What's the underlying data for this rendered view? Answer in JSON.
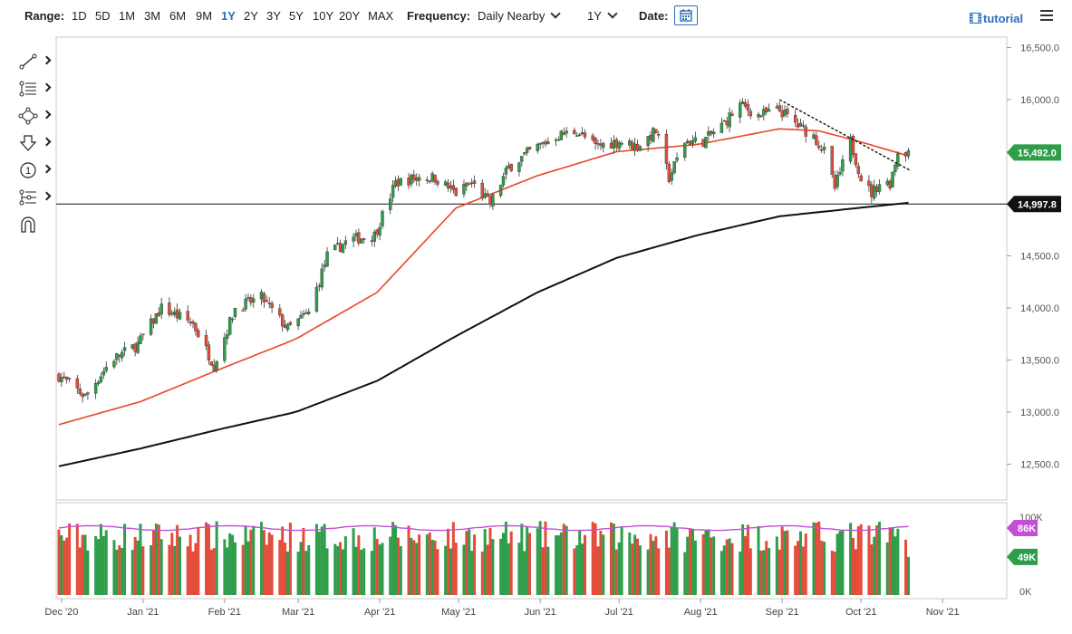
{
  "toolbar": {
    "range_label": "Range:",
    "ranges": [
      "1D",
      "5D",
      "1M",
      "3M",
      "6M",
      "9M",
      "1Y",
      "2Y",
      "3Y",
      "5Y",
      "10Y",
      "20Y",
      "MAX"
    ],
    "active_range": "1Y",
    "frequency_label": "Frequency:",
    "frequency_value": "Daily Nearby",
    "period_value": "1Y",
    "date_label": "Date:",
    "tutorial_label": "tutorial"
  },
  "drawing_tools": [
    "line-tool-icon",
    "fibonacci-tool-icon",
    "shape-tool-icon",
    "arrow-tool-icon",
    "annotation-tool-icon",
    "measure-tool-icon",
    "magnet-tool-icon"
  ],
  "colors": {
    "up": "#2e9e4a",
    "down": "#e34c3a",
    "ma50": "#e8462a",
    "ma200": "#111111",
    "volume_avg": "#c34fd6",
    "accent": "#2a6ebb"
  },
  "chart_data": {
    "type": "candlestick",
    "x_ticks": [
      "Dec '20",
      "Jan '21",
      "Feb '21",
      "Mar '21",
      "Apr '21",
      "May '21",
      "Jun '21",
      "Jul '21",
      "Aug '21",
      "Sep '21",
      "Oct '21",
      "Nov '21"
    ],
    "y_ticks": [
      "16,500.0",
      "16,000.0",
      "15,500.0",
      "15,000.0",
      "14,500.0",
      "14,000.0",
      "13,500.0",
      "13,000.0",
      "12,500.0"
    ],
    "ylim": [
      12400,
      16600
    ],
    "price_anchors": [
      [
        "2020-11-30",
        13350
      ],
      [
        "2020-12-10",
        13150
      ],
      [
        "2020-12-20",
        13500
      ],
      [
        "2020-12-30",
        13650
      ],
      [
        "2021-01-08",
        14000
      ],
      [
        "2021-01-20",
        13850
      ],
      [
        "2021-01-28",
        13450
      ],
      [
        "2021-02-05",
        14000
      ],
      [
        "2021-02-15",
        14100
      ],
      [
        "2021-02-25",
        13800
      ],
      [
        "2021-03-05",
        13950
      ],
      [
        "2021-03-12",
        14500
      ],
      [
        "2021-03-20",
        14650
      ],
      [
        "2021-03-30",
        14700
      ],
      [
        "2021-04-07",
        15200
      ],
      [
        "2021-04-15",
        15250
      ],
      [
        "2021-04-22",
        15250
      ],
      [
        "2021-04-30",
        15100
      ],
      [
        "2021-05-06",
        15200
      ],
      [
        "2021-05-13",
        15000
      ],
      [
        "2021-05-20",
        15350
      ],
      [
        "2021-05-28",
        15500
      ],
      [
        "2021-06-07",
        15650
      ],
      [
        "2021-06-15",
        15700
      ],
      [
        "2021-06-22",
        15550
      ],
      [
        "2021-07-01",
        15600
      ],
      [
        "2021-07-08",
        15550
      ],
      [
        "2021-07-15",
        15700
      ],
      [
        "2021-07-20",
        15250
      ],
      [
        "2021-07-26",
        15600
      ],
      [
        "2021-08-02",
        15600
      ],
      [
        "2021-08-09",
        15750
      ],
      [
        "2021-08-16",
        15950
      ],
      [
        "2021-08-23",
        15850
      ],
      [
        "2021-08-31",
        15900
      ],
      [
        "2021-09-07",
        15750
      ],
      [
        "2021-09-13",
        15650
      ],
      [
        "2021-09-17",
        15500
      ],
      [
        "2021-09-21",
        15150
      ],
      [
        "2021-09-27",
        15600
      ],
      [
        "2021-10-01",
        15250
      ],
      [
        "2021-10-05",
        15100
      ],
      [
        "2021-10-08",
        15200
      ],
      [
        "2021-10-12",
        15200
      ],
      [
        "2021-10-15",
        15500
      ],
      [
        "2021-10-19",
        15500
      ]
    ],
    "ma50_anchors": [
      [
        "2020-11-30",
        12880
      ],
      [
        "2020-12-31",
        13100
      ],
      [
        "2021-01-31",
        13420
      ],
      [
        "2021-02-28",
        13700
      ],
      [
        "2021-03-31",
        14150
      ],
      [
        "2021-04-30",
        14960
      ],
      [
        "2021-05-31",
        15270
      ],
      [
        "2021-06-30",
        15500
      ],
      [
        "2021-07-31",
        15570
      ],
      [
        "2021-08-31",
        15720
      ],
      [
        "2021-09-15",
        15700
      ],
      [
        "2021-09-30",
        15600
      ],
      [
        "2021-10-19",
        15460
      ]
    ],
    "ma200_anchors": [
      [
        "2020-11-30",
        12480
      ],
      [
        "2020-12-31",
        12650
      ],
      [
        "2021-01-31",
        12840
      ],
      [
        "2021-02-28",
        13000
      ],
      [
        "2021-03-31",
        13300
      ],
      [
        "2021-04-30",
        13730
      ],
      [
        "2021-05-31",
        14150
      ],
      [
        "2021-06-30",
        14480
      ],
      [
        "2021-07-31",
        14700
      ],
      [
        "2021-08-31",
        14880
      ],
      [
        "2021-09-30",
        14960
      ],
      [
        "2021-10-19",
        15010
      ]
    ],
    "trendline": [
      [
        "2021-08-31",
        16000
      ],
      [
        "2021-10-20",
        15420
      ]
    ],
    "horizontal_line": 14997.8,
    "last_price": {
      "label": "15,492.0",
      "value": 15492.0
    },
    "hline_label": {
      "label": "14,997.8",
      "value": 14997.8
    },
    "volume": {
      "ticks": [
        "100K",
        "0K"
      ],
      "avg_label": "86K",
      "avg_value": 86000,
      "last_label": "49K",
      "last_value": 49000,
      "max": 100000
    }
  }
}
